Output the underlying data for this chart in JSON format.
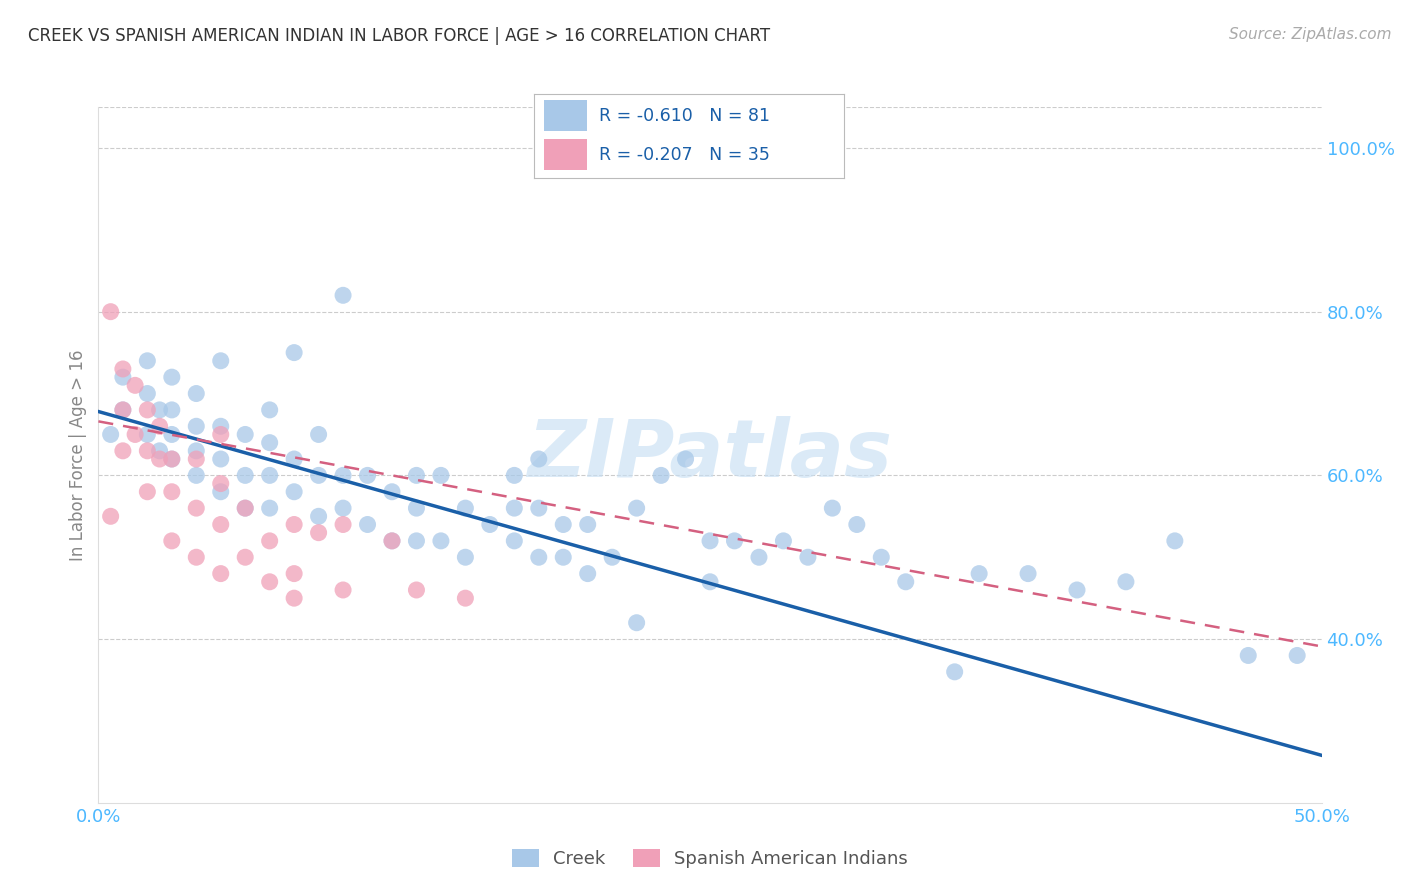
{
  "title": "CREEK VS SPANISH AMERICAN INDIAN IN LABOR FORCE | AGE > 16 CORRELATION CHART",
  "source": "Source: ZipAtlas.com",
  "ylabel": "In Labor Force | Age > 16",
  "xlim": [
    0.0,
    0.5
  ],
  "ylim": [
    0.2,
    1.05
  ],
  "yticks_right": [
    1.0,
    0.8,
    0.6,
    0.4
  ],
  "yticklabels_right": [
    "100.0%",
    "80.0%",
    "60.0%",
    "40.0%"
  ],
  "creek_color": "#a8c8e8",
  "spanish_color": "#f0a0b8",
  "creek_line_color": "#1a5fa8",
  "spanish_line_color": "#d46080",
  "creek_R": -0.61,
  "creek_N": 81,
  "spanish_R": -0.207,
  "spanish_N": 35,
  "grid_color": "#cccccc",
  "background_color": "#ffffff",
  "title_color": "#333333",
  "tick_color": "#4db8ff",
  "creek_x": [
    0.005,
    0.01,
    0.01,
    0.02,
    0.02,
    0.02,
    0.025,
    0.025,
    0.03,
    0.03,
    0.03,
    0.03,
    0.04,
    0.04,
    0.04,
    0.04,
    0.05,
    0.05,
    0.05,
    0.05,
    0.06,
    0.06,
    0.06,
    0.07,
    0.07,
    0.07,
    0.07,
    0.08,
    0.08,
    0.08,
    0.09,
    0.09,
    0.09,
    0.1,
    0.1,
    0.1,
    0.11,
    0.11,
    0.12,
    0.12,
    0.13,
    0.13,
    0.13,
    0.14,
    0.14,
    0.15,
    0.15,
    0.16,
    0.17,
    0.17,
    0.17,
    0.18,
    0.18,
    0.18,
    0.19,
    0.19,
    0.2,
    0.2,
    0.21,
    0.22,
    0.22,
    0.23,
    0.24,
    0.25,
    0.25,
    0.26,
    0.27,
    0.28,
    0.29,
    0.3,
    0.31,
    0.32,
    0.33,
    0.35,
    0.36,
    0.38,
    0.4,
    0.42,
    0.44,
    0.47,
    0.49
  ],
  "creek_y": [
    0.65,
    0.68,
    0.72,
    0.7,
    0.74,
    0.65,
    0.63,
    0.68,
    0.62,
    0.65,
    0.68,
    0.72,
    0.6,
    0.63,
    0.66,
    0.7,
    0.58,
    0.62,
    0.66,
    0.74,
    0.56,
    0.6,
    0.65,
    0.56,
    0.6,
    0.64,
    0.68,
    0.58,
    0.62,
    0.75,
    0.55,
    0.6,
    0.65,
    0.56,
    0.6,
    0.82,
    0.54,
    0.6,
    0.52,
    0.58,
    0.52,
    0.56,
    0.6,
    0.52,
    0.6,
    0.5,
    0.56,
    0.54,
    0.52,
    0.56,
    0.6,
    0.5,
    0.56,
    0.62,
    0.5,
    0.54,
    0.48,
    0.54,
    0.5,
    0.42,
    0.56,
    0.6,
    0.62,
    0.47,
    0.52,
    0.52,
    0.5,
    0.52,
    0.5,
    0.56,
    0.54,
    0.5,
    0.47,
    0.36,
    0.48,
    0.48,
    0.46,
    0.47,
    0.52,
    0.38,
    0.38
  ],
  "spanish_x": [
    0.005,
    0.005,
    0.01,
    0.01,
    0.01,
    0.015,
    0.015,
    0.02,
    0.02,
    0.02,
    0.025,
    0.025,
    0.03,
    0.03,
    0.03,
    0.04,
    0.04,
    0.04,
    0.05,
    0.05,
    0.05,
    0.05,
    0.06,
    0.06,
    0.07,
    0.07,
    0.08,
    0.08,
    0.08,
    0.09,
    0.1,
    0.1,
    0.12,
    0.13,
    0.15
  ],
  "spanish_y": [
    0.8,
    0.55,
    0.73,
    0.68,
    0.63,
    0.71,
    0.65,
    0.68,
    0.63,
    0.58,
    0.66,
    0.62,
    0.62,
    0.58,
    0.52,
    0.62,
    0.56,
    0.5,
    0.65,
    0.59,
    0.54,
    0.48,
    0.56,
    0.5,
    0.52,
    0.47,
    0.54,
    0.48,
    0.45,
    0.53,
    0.54,
    0.46,
    0.52,
    0.46,
    0.45
  ]
}
